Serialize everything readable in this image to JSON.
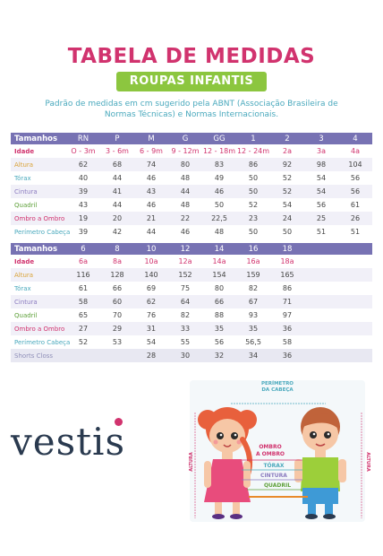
{
  "header": {
    "title": "TABELA DE MEDIDAS",
    "badge": "ROUPAS INFANTIS",
    "description": "Padrão de medidas em cm sugerido pela ABNT (Associação Brasileira de Normas Técnicas) e Normas Internacionais."
  },
  "table1": {
    "header": [
      "Tamanhos",
      "RN",
      "P",
      "M",
      "G",
      "GG",
      "1",
      "2",
      "3",
      "4"
    ],
    "rows": [
      {
        "label": "Idade",
        "cells": [
          "O - 3m",
          "3 - 6m",
          "6 - 9m",
          "9 - 12m",
          "12 - 18m",
          "12 - 24m",
          "2a",
          "3a",
          "4a"
        ]
      },
      {
        "label": "Altura",
        "cells": [
          "62",
          "68",
          "74",
          "80",
          "83",
          "86",
          "92",
          "98",
          "104"
        ]
      },
      {
        "label": "Tórax",
        "cells": [
          "40",
          "44",
          "46",
          "48",
          "49",
          "50",
          "52",
          "54",
          "56"
        ]
      },
      {
        "label": "Cintura",
        "cells": [
          "39",
          "41",
          "43",
          "44",
          "46",
          "50",
          "52",
          "54",
          "56"
        ]
      },
      {
        "label": "Quadril",
        "cells": [
          "43",
          "44",
          "46",
          "48",
          "50",
          "52",
          "54",
          "56",
          "61"
        ]
      },
      {
        "label": "Ombro a Ombro",
        "cells": [
          "19",
          "20",
          "21",
          "22",
          "22,5",
          "23",
          "24",
          "25",
          "26"
        ]
      },
      {
        "label": "Perímetro Cabeça",
        "cells": [
          "39",
          "42",
          "44",
          "46",
          "48",
          "50",
          "50",
          "51",
          "51"
        ]
      }
    ]
  },
  "table2": {
    "header": [
      "Tamanhos",
      "6",
      "8",
      "10",
      "12",
      "14",
      "16",
      "18",
      "",
      ""
    ],
    "rows": [
      {
        "label": "Idade",
        "cells": [
          "6a",
          "8a",
          "10a",
          "12a",
          "14a",
          "16a",
          "18a",
          "",
          ""
        ]
      },
      {
        "label": "Altura",
        "cells": [
          "116",
          "128",
          "140",
          "152",
          "154",
          "159",
          "165",
          "",
          ""
        ]
      },
      {
        "label": "Tórax",
        "cells": [
          "61",
          "66",
          "69",
          "75",
          "80",
          "82",
          "86",
          "",
          ""
        ]
      },
      {
        "label": "Cintura",
        "cells": [
          "58",
          "60",
          "62",
          "64",
          "66",
          "67",
          "71",
          "",
          ""
        ]
      },
      {
        "label": "Quadril",
        "cells": [
          "65",
          "70",
          "76",
          "82",
          "88",
          "93",
          "97",
          "",
          ""
        ]
      },
      {
        "label": "Ombro a Ombro",
        "cells": [
          "27",
          "29",
          "31",
          "33",
          "35",
          "35",
          "36",
          "",
          ""
        ]
      },
      {
        "label": "Perímetro Cabeça",
        "cells": [
          "52",
          "53",
          "54",
          "55",
          "56",
          "56,5",
          "58",
          "",
          ""
        ]
      },
      {
        "label": "Shorts Closs",
        "cells": [
          "",
          "",
          "28",
          "30",
          "32",
          "34",
          "36",
          "",
          ""
        ]
      }
    ]
  },
  "brand": {
    "logo_text": "vestis"
  },
  "diagram": {
    "perimetro": "PERÍMETRO\nDA CABEÇA",
    "perimetro_l1": "PERÍMETRO",
    "perimetro_l2": "DA CABEÇA",
    "ombro_l1": "OMBRO",
    "ombro_l2": "A OMBRO",
    "torax": "TÓRAX",
    "cintura": "CINTURA",
    "quadril": "QUADRIL",
    "altura_left": "ALTURA",
    "altura_right": "ALTURA"
  },
  "colors": {
    "title": "#d1336e",
    "badge": "#8cc63f",
    "header_bar": "#7772b3",
    "description": "#4aa9bd"
  }
}
